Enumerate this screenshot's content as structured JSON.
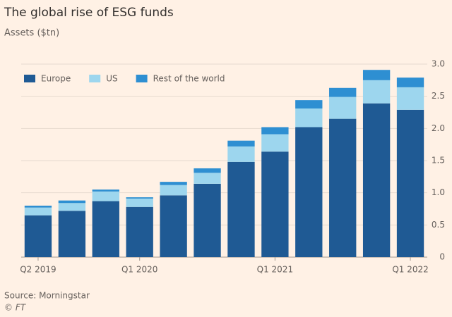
{
  "chart_data": {
    "type": "stacked-bar",
    "title": "The global rise of ESG funds",
    "subtitle": "Assets ($tn)",
    "source": "Source: Morningstar",
    "credit": "© FT",
    "categories": [
      "Q2 2019",
      null,
      null,
      "Q1 2020",
      null,
      null,
      null,
      "Q1 2021",
      null,
      null,
      null,
      "Q1 2022"
    ],
    "series": [
      {
        "name": "Europe",
        "color": "#1f5a94",
        "values": [
          0.65,
          0.72,
          0.87,
          0.78,
          0.96,
          1.14,
          1.48,
          1.64,
          2.02,
          2.15,
          2.39,
          2.29
        ]
      },
      {
        "name": "US",
        "color": "#9dd6ee",
        "values": [
          0.12,
          0.12,
          0.15,
          0.13,
          0.16,
          0.17,
          0.24,
          0.27,
          0.29,
          0.34,
          0.36,
          0.35
        ]
      },
      {
        "name": "Rest of the world",
        "color": "#2e8fd2",
        "values": [
          0.03,
          0.04,
          0.03,
          0.02,
          0.05,
          0.07,
          0.09,
          0.11,
          0.13,
          0.14,
          0.16,
          0.15
        ]
      }
    ],
    "ylim": [
      0,
      3
    ],
    "yticks": [
      0,
      0.5,
      {
        "value": 1,
        "label": "1.0"
      },
      1.5,
      {
        "value": 2,
        "label": "2.0"
      },
      2.5,
      {
        "value": 3,
        "label": "3.0"
      }
    ],
    "grid": true,
    "legend": "top-left"
  }
}
